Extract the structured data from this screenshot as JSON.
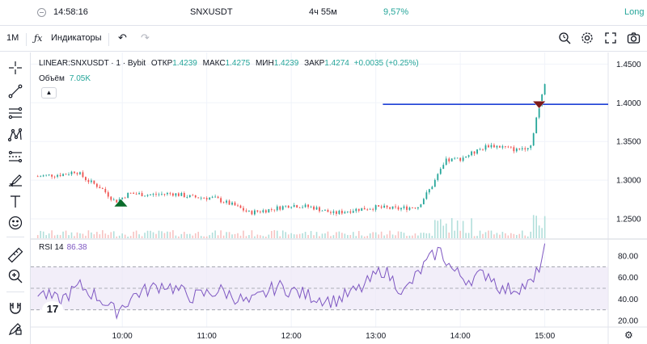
{
  "topstrip": {
    "time": "14:58:16",
    "symbol": "SNXUSDT",
    "duration": "4ч 55м",
    "percent": "9,57%",
    "side": "Long",
    "percent_color": "#26a69a",
    "side_color": "#26a69a"
  },
  "toolbar": {
    "interval": "1M",
    "indicators_label": "Индикаторы"
  },
  "legend": {
    "symbol": "LINEAR:SNXUSDT · 1 · Bybit",
    "open_label": "ОТКР",
    "open": "1.4239",
    "high_label": "МАКС",
    "high": "1.4275",
    "low_label": "МИН",
    "low": "1.4239",
    "close_label": "ЗАКР",
    "close": "1.4274",
    "change": "+0.0035 (+0.25%)"
  },
  "volume": {
    "label": "Объём",
    "value": "7.05K"
  },
  "rsi": {
    "label": "RSI 14",
    "value": "86.38"
  },
  "colors": {
    "up": "#26a69a",
    "down": "#ef5350",
    "rsi_line": "#7e57c2",
    "rsi_band": "#ede7f6",
    "level_line": "#1e40d6",
    "buy_marker": "#0b6b2a",
    "sell_marker": "#7a1a1a"
  },
  "icons": [
    "crosshair-icon",
    "trend-line-icon",
    "fib-icon",
    "pattern-icon",
    "prediction-icon",
    "brush-icon",
    "text-icon",
    "emoji-icon",
    "ruler-icon",
    "zoom-icon",
    "magnet-icon",
    "lock-drawing-icon"
  ],
  "chart_data": {
    "type": "candlestick",
    "price_axis": {
      "ticks": [
        "1.4500",
        "1.4000",
        "1.3500",
        "1.3000",
        "1.2500"
      ],
      "range": [
        1.225,
        1.465
      ]
    },
    "rsi_axis": {
      "ticks": [
        "80.00",
        "60.00",
        "40.00",
        "20.00"
      ],
      "range": [
        14,
        95
      ],
      "bands": [
        30,
        50,
        70
      ]
    },
    "time_ticks": [
      "10:00",
      "11:00",
      "12:00",
      "13:00",
      "14:00",
      "15:00"
    ],
    "level_line_price": 1.398,
    "markers": [
      {
        "type": "buy",
        "time": "09:59",
        "price": 1.2712
      },
      {
        "type": "sell",
        "time": "14:56",
        "price": 1.398
      }
    ],
    "price_series": [
      {
        "t": "09:00",
        "c": 1.305
      },
      {
        "t": "09:20",
        "c": 1.308
      },
      {
        "t": "09:27",
        "c": 1.312
      },
      {
        "t": "09:35",
        "c": 1.3
      },
      {
        "t": "09:45",
        "c": 1.29
      },
      {
        "t": "09:55",
        "c": 1.272
      },
      {
        "t": "10:05",
        "c": 1.283
      },
      {
        "t": "10:20",
        "c": 1.281
      },
      {
        "t": "10:35",
        "c": 1.283
      },
      {
        "t": "10:50",
        "c": 1.278
      },
      {
        "t": "11:05",
        "c": 1.277
      },
      {
        "t": "11:20",
        "c": 1.267
      },
      {
        "t": "11:30",
        "c": 1.258
      },
      {
        "t": "11:45",
        "c": 1.262
      },
      {
        "t": "12:00",
        "c": 1.268
      },
      {
        "t": "12:15",
        "c": 1.265
      },
      {
        "t": "12:30",
        "c": 1.257
      },
      {
        "t": "12:45",
        "c": 1.262
      },
      {
        "t": "13:00",
        "c": 1.265
      },
      {
        "t": "13:15",
        "c": 1.263
      },
      {
        "t": "13:30",
        "c": 1.266
      },
      {
        "t": "13:40",
        "c": 1.293
      },
      {
        "t": "13:50",
        "c": 1.325
      },
      {
        "t": "14:00",
        "c": 1.328
      },
      {
        "t": "14:10",
        "c": 1.336
      },
      {
        "t": "14:20",
        "c": 1.345
      },
      {
        "t": "14:30",
        "c": 1.343
      },
      {
        "t": "14:40",
        "c": 1.339
      },
      {
        "t": "14:50",
        "c": 1.345
      },
      {
        "t": "14:55",
        "c": 1.39
      },
      {
        "t": "15:00",
        "c": 1.427
      }
    ],
    "rsi_series": [
      {
        "t": "09:00",
        "v": 47
      },
      {
        "t": "09:15",
        "v": 38
      },
      {
        "t": "09:30",
        "v": 52
      },
      {
        "t": "09:45",
        "v": 40
      },
      {
        "t": "09:55",
        "v": 28
      },
      {
        "t": "10:10",
        "v": 45
      },
      {
        "t": "10:30",
        "v": 54
      },
      {
        "t": "10:50",
        "v": 42
      },
      {
        "t": "11:10",
        "v": 48
      },
      {
        "t": "11:30",
        "v": 36
      },
      {
        "t": "11:50",
        "v": 52
      },
      {
        "t": "12:10",
        "v": 44
      },
      {
        "t": "12:30",
        "v": 38
      },
      {
        "t": "12:50",
        "v": 50
      },
      {
        "t": "13:05",
        "v": 68
      },
      {
        "t": "13:20",
        "v": 46
      },
      {
        "t": "13:35",
        "v": 72
      },
      {
        "t": "13:45",
        "v": 86
      },
      {
        "t": "13:55",
        "v": 66
      },
      {
        "t": "14:05",
        "v": 58
      },
      {
        "t": "14:20",
        "v": 64
      },
      {
        "t": "14:30",
        "v": 48
      },
      {
        "t": "14:45",
        "v": 52
      },
      {
        "t": "14:52",
        "v": 55
      },
      {
        "t": "15:00",
        "v": 86
      }
    ]
  }
}
